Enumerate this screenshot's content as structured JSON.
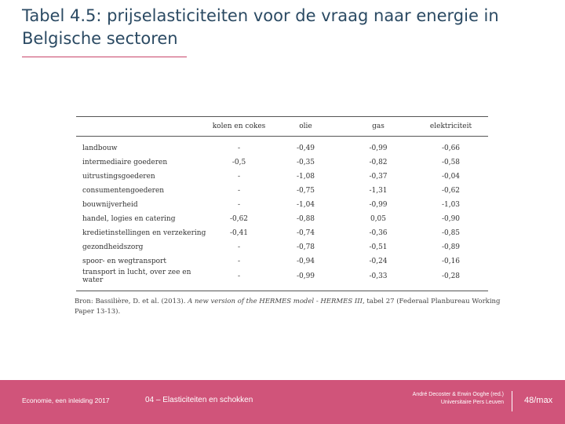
{
  "title": "Tabel 4.5: prijselasticiteiten voor de vraag naar energie in Belgische sectoren",
  "table": {
    "headers": [
      "",
      "kolen en cokes",
      "olie",
      "gas",
      "elektriciteit"
    ],
    "rows": [
      [
        "landbouw",
        "-",
        "-0,49",
        "-0,99",
        "-0,66"
      ],
      [
        "intermediaire goederen",
        "-0,5",
        "-0,35",
        "-0,82",
        "-0,58"
      ],
      [
        "uitrustingsgoederen",
        "-",
        "-1,08",
        "-0,37",
        "-0,04"
      ],
      [
        "consumentengoederen",
        "-",
        "-0,75",
        "-1,31",
        "-0,62"
      ],
      [
        "bouwnijverheid",
        "-",
        "-1,04",
        "-0,99",
        "-1,03"
      ],
      [
        "handel, logies en catering",
        "-0,62",
        "-0,88",
        "0,05",
        "-0,90"
      ],
      [
        "kredietinstellingen en verzekering",
        "-0,41",
        "-0,74",
        "-0,36",
        "-0,85"
      ],
      [
        "gezondheidszorg",
        "-",
        "-0,78",
        "-0,51",
        "-0,89"
      ],
      [
        "spoor- en wegtransport",
        "-",
        "-0,94",
        "-0,24",
        "-0,16"
      ],
      [
        "transport in lucht, over zee en water",
        "-",
        "-0,99",
        "-0,33",
        "-0,28"
      ]
    ]
  },
  "source": {
    "prefix": "Bron: Bassilière, D. et al. (2013). ",
    "italic": "A new version of the HERMES model - HERMES III",
    "suffix": ", tabel 27 (Federaal Planbureau Working Paper 13-13)."
  },
  "footer": {
    "left": "Economie, een inleiding 2017",
    "middle": "04 – Elasticiteiten en schokken",
    "authors": "André Decoster & Erwin Ooghe (red.)",
    "publisher": "Universitaire Pers Leuven",
    "page": "48/max"
  },
  "colors": {
    "title": "#2b4a63",
    "accent": "#d0547a",
    "text": "#333333"
  }
}
